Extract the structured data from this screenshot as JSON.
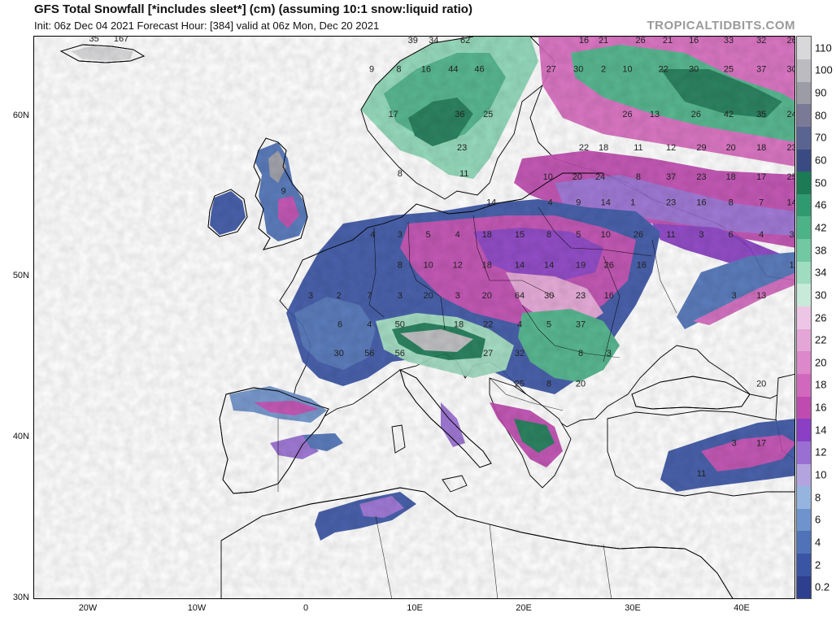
{
  "header": {
    "title": "GFS Total Snowfall [*includes sleet*] (cm) (assuming 10:1 snow:liquid ratio)",
    "subtitle": "Init: 06z Dec 04 2021   Forecast Hour: [384]   valid at 06z Mon, Dec 20 2021",
    "brand": "TROPICALTIDBITS.COM"
  },
  "axes": {
    "lat_labels": [
      "60N",
      "50N",
      "40N",
      "30N"
    ],
    "lon_labels": [
      "20W",
      "10W",
      "0",
      "10E",
      "20E",
      "30E",
      "40E"
    ]
  },
  "colorbar": {
    "levels": [
      "0.2",
      "2",
      "4",
      "6",
      "8",
      "10",
      "12",
      "14",
      "16",
      "18",
      "20",
      "22",
      "26",
      "30",
      "34",
      "38",
      "42",
      "46",
      "50",
      "60",
      "70",
      "80",
      "90",
      "100",
      "110"
    ],
    "colors": [
      "#2e3f8f",
      "#3b55a5",
      "#4f72b8",
      "#6f93cc",
      "#96b5de",
      "#b3a4e0",
      "#9a6fd3",
      "#8a3fc4",
      "#c04bb0",
      "#d268bd",
      "#dc88ca",
      "#e4a6d6",
      "#edc6e6",
      "#c8ead8",
      "#9fdcc0",
      "#72c8a3",
      "#4cb388",
      "#2f9a70",
      "#1c7a55",
      "#3a4a82",
      "#5a6490",
      "#7a7a96",
      "#9c9ca6",
      "#bcbcc0",
      "#d8d8da"
    ]
  },
  "legend_colors": {
    "land": "#ffffff",
    "border": "#000000"
  },
  "values": [
    {
      "t": "35",
      "lon": -19.5,
      "lat": 65.0
    },
    {
      "t": "167",
      "lon": -17.0,
      "lat": 65.0
    },
    {
      "t": "39",
      "lon": 9.8,
      "lat": 64.9
    },
    {
      "t": "34",
      "lon": 11.7,
      "lat": 64.9
    },
    {
      "t": "62",
      "lon": 14.6,
      "lat": 64.9
    },
    {
      "t": "16",
      "lon": 25.5,
      "lat": 64.9
    },
    {
      "t": "21",
      "lon": 27.3,
      "lat": 64.9
    },
    {
      "t": "26",
      "lon": 30.7,
      "lat": 64.9
    },
    {
      "t": "21",
      "lon": 33.2,
      "lat": 64.9
    },
    {
      "t": "16",
      "lon": 35.6,
      "lat": 64.9
    },
    {
      "t": "33",
      "lon": 38.8,
      "lat": 64.9
    },
    {
      "t": "32",
      "lon": 41.8,
      "lat": 64.9
    },
    {
      "t": "26",
      "lon": 44.6,
      "lat": 64.9
    },
    {
      "t": "9",
      "lon": 6.0,
      "lat": 63.1
    },
    {
      "t": "8",
      "lon": 8.5,
      "lat": 63.1
    },
    {
      "t": "16",
      "lon": 11.0,
      "lat": 63.1
    },
    {
      "t": "44",
      "lon": 13.5,
      "lat": 63.1
    },
    {
      "t": "46",
      "lon": 15.9,
      "lat": 63.1
    },
    {
      "t": "27",
      "lon": 22.5,
      "lat": 63.1
    },
    {
      "t": "30",
      "lon": 25.0,
      "lat": 63.1
    },
    {
      "t": "2",
      "lon": 27.3,
      "lat": 63.1
    },
    {
      "t": "10",
      "lon": 29.5,
      "lat": 63.1
    },
    {
      "t": "22",
      "lon": 32.8,
      "lat": 63.1
    },
    {
      "t": "30",
      "lon": 35.6,
      "lat": 63.1
    },
    {
      "t": "25",
      "lon": 38.8,
      "lat": 63.1
    },
    {
      "t": "37",
      "lon": 41.8,
      "lat": 63.1
    },
    {
      "t": "30",
      "lon": 44.6,
      "lat": 63.1
    },
    {
      "t": "17",
      "lon": 8.0,
      "lat": 60.3
    },
    {
      "t": "36",
      "lon": 14.1,
      "lat": 60.3
    },
    {
      "t": "25",
      "lon": 16.7,
      "lat": 60.3
    },
    {
      "t": "26",
      "lon": 29.5,
      "lat": 60.3
    },
    {
      "t": "13",
      "lon": 32.0,
      "lat": 60.3
    },
    {
      "t": "26",
      "lon": 35.8,
      "lat": 60.3
    },
    {
      "t": "42",
      "lon": 38.8,
      "lat": 60.3
    },
    {
      "t": "35",
      "lon": 41.8,
      "lat": 60.3
    },
    {
      "t": "24",
      "lon": 44.6,
      "lat": 60.3
    },
    {
      "t": "23",
      "lon": 14.3,
      "lat": 58.2
    },
    {
      "t": "22",
      "lon": 25.5,
      "lat": 58.2
    },
    {
      "t": "18",
      "lon": 27.3,
      "lat": 58.2
    },
    {
      "t": "11",
      "lon": 30.5,
      "lat": 58.2
    },
    {
      "t": "12",
      "lon": 33.5,
      "lat": 58.2
    },
    {
      "t": "29",
      "lon": 36.3,
      "lat": 58.2
    },
    {
      "t": "20",
      "lon": 39.0,
      "lat": 58.2
    },
    {
      "t": "18",
      "lon": 41.8,
      "lat": 58.2
    },
    {
      "t": "23",
      "lon": 44.6,
      "lat": 58.2
    },
    {
      "t": "9",
      "lon": -2.1,
      "lat": 55.5
    },
    {
      "t": "8",
      "lon": 8.6,
      "lat": 56.6
    },
    {
      "t": "11",
      "lon": 14.5,
      "lat": 56.6
    },
    {
      "t": "10",
      "lon": 22.2,
      "lat": 56.4
    },
    {
      "t": "20",
      "lon": 24.9,
      "lat": 56.4
    },
    {
      "t": "24",
      "lon": 27.0,
      "lat": 56.4
    },
    {
      "t": "8",
      "lon": 30.5,
      "lat": 56.4
    },
    {
      "t": "37",
      "lon": 33.5,
      "lat": 56.4
    },
    {
      "t": "23",
      "lon": 36.3,
      "lat": 56.4
    },
    {
      "t": "18",
      "lon": 39.0,
      "lat": 56.4
    },
    {
      "t": "17",
      "lon": 41.8,
      "lat": 56.4
    },
    {
      "t": "25",
      "lon": 44.6,
      "lat": 56.4
    },
    {
      "t": "14",
      "lon": 17.0,
      "lat": 54.8
    },
    {
      "t": "4",
      "lon": 22.4,
      "lat": 54.8
    },
    {
      "t": "9",
      "lon": 25.0,
      "lat": 54.8
    },
    {
      "t": "14",
      "lon": 27.5,
      "lat": 54.8
    },
    {
      "t": "1",
      "lon": 30.0,
      "lat": 54.8
    },
    {
      "t": "23",
      "lon": 33.5,
      "lat": 54.8
    },
    {
      "t": "16",
      "lon": 36.3,
      "lat": 54.8
    },
    {
      "t": "8",
      "lon": 39.0,
      "lat": 54.8
    },
    {
      "t": "7",
      "lon": 41.8,
      "lat": 54.8
    },
    {
      "t": "14",
      "lon": 44.6,
      "lat": 54.8
    },
    {
      "t": "4",
      "lon": 6.1,
      "lat": 52.8
    },
    {
      "t": "3",
      "lon": 8.6,
      "lat": 52.8
    },
    {
      "t": "5",
      "lon": 11.2,
      "lat": 52.8
    },
    {
      "t": "4",
      "lon": 13.9,
      "lat": 52.8
    },
    {
      "t": "18",
      "lon": 16.6,
      "lat": 52.8
    },
    {
      "t": "15",
      "lon": 19.6,
      "lat": 52.8
    },
    {
      "t": "8",
      "lon": 22.3,
      "lat": 52.8
    },
    {
      "t": "5",
      "lon": 25.0,
      "lat": 52.8
    },
    {
      "t": "10",
      "lon": 27.5,
      "lat": 52.8
    },
    {
      "t": "26",
      "lon": 30.5,
      "lat": 52.8
    },
    {
      "t": "11",
      "lon": 33.5,
      "lat": 52.8
    },
    {
      "t": "3",
      "lon": 36.3,
      "lat": 52.8
    },
    {
      "t": "6",
      "lon": 39.0,
      "lat": 52.8
    },
    {
      "t": "4",
      "lon": 41.8,
      "lat": 52.8
    },
    {
      "t": "3",
      "lon": 44.6,
      "lat": 52.8
    },
    {
      "t": "8",
      "lon": 8.6,
      "lat": 50.9
    },
    {
      "t": "10",
      "lon": 11.2,
      "lat": 50.9
    },
    {
      "t": "12",
      "lon": 13.9,
      "lat": 50.9
    },
    {
      "t": "18",
      "lon": 16.6,
      "lat": 50.9
    },
    {
      "t": "14",
      "lon": 19.6,
      "lat": 50.9
    },
    {
      "t": "14",
      "lon": 22.3,
      "lat": 50.9
    },
    {
      "t": "19",
      "lon": 25.2,
      "lat": 50.9
    },
    {
      "t": "26",
      "lon": 27.8,
      "lat": 50.9
    },
    {
      "t": "16",
      "lon": 30.8,
      "lat": 50.9
    },
    {
      "t": "1",
      "lon": 44.6,
      "lat": 50.9
    },
    {
      "t": "3",
      "lon": 0.4,
      "lat": 49.0
    },
    {
      "t": "2",
      "lon": 3.0,
      "lat": 49.0
    },
    {
      "t": "7",
      "lon": 5.8,
      "lat": 49.0
    },
    {
      "t": "3",
      "lon": 8.6,
      "lat": 49.0
    },
    {
      "t": "20",
      "lon": 11.2,
      "lat": 49.0
    },
    {
      "t": "3",
      "lon": 13.9,
      "lat": 49.0
    },
    {
      "t": "20",
      "lon": 16.6,
      "lat": 49.0
    },
    {
      "t": "64",
      "lon": 19.6,
      "lat": 49.0
    },
    {
      "t": "30",
      "lon": 22.3,
      "lat": 49.0
    },
    {
      "t": "23",
      "lon": 25.2,
      "lat": 49.0
    },
    {
      "t": "16",
      "lon": 27.8,
      "lat": 49.0
    },
    {
      "t": "3",
      "lon": 39.3,
      "lat": 49.0
    },
    {
      "t": "13",
      "lon": 41.8,
      "lat": 49.0
    },
    {
      "t": "6",
      "lon": 3.1,
      "lat": 47.2
    },
    {
      "t": "4",
      "lon": 5.8,
      "lat": 47.2
    },
    {
      "t": "50",
      "lon": 8.6,
      "lat": 47.2
    },
    {
      "t": "18",
      "lon": 14.0,
      "lat": 47.2
    },
    {
      "t": "22",
      "lon": 16.7,
      "lat": 47.2
    },
    {
      "t": "4",
      "lon": 19.6,
      "lat": 47.2
    },
    {
      "t": "5",
      "lon": 22.3,
      "lat": 47.2
    },
    {
      "t": "37",
      "lon": 25.2,
      "lat": 47.2
    },
    {
      "t": "30",
      "lon": 3.0,
      "lat": 45.4
    },
    {
      "t": "56",
      "lon": 5.8,
      "lat": 45.4
    },
    {
      "t": "56",
      "lon": 8.6,
      "lat": 45.4
    },
    {
      "t": "27",
      "lon": 16.7,
      "lat": 45.4
    },
    {
      "t": "32",
      "lon": 19.6,
      "lat": 45.4
    },
    {
      "t": "8",
      "lon": 25.2,
      "lat": 45.4
    },
    {
      "t": "3",
      "lon": 27.8,
      "lat": 45.4
    },
    {
      "t": "25",
      "lon": 19.6,
      "lat": 43.5
    },
    {
      "t": "8",
      "lon": 22.3,
      "lat": 43.5
    },
    {
      "t": "20",
      "lon": 25.2,
      "lat": 43.5
    },
    {
      "t": "20",
      "lon": 41.8,
      "lat": 43.5
    },
    {
      "t": "3",
      "lon": 39.3,
      "lat": 39.8
    },
    {
      "t": "17",
      "lon": 41.8,
      "lat": 39.8
    },
    {
      "t": "11",
      "lon": 36.3,
      "lat": 37.9
    }
  ]
}
